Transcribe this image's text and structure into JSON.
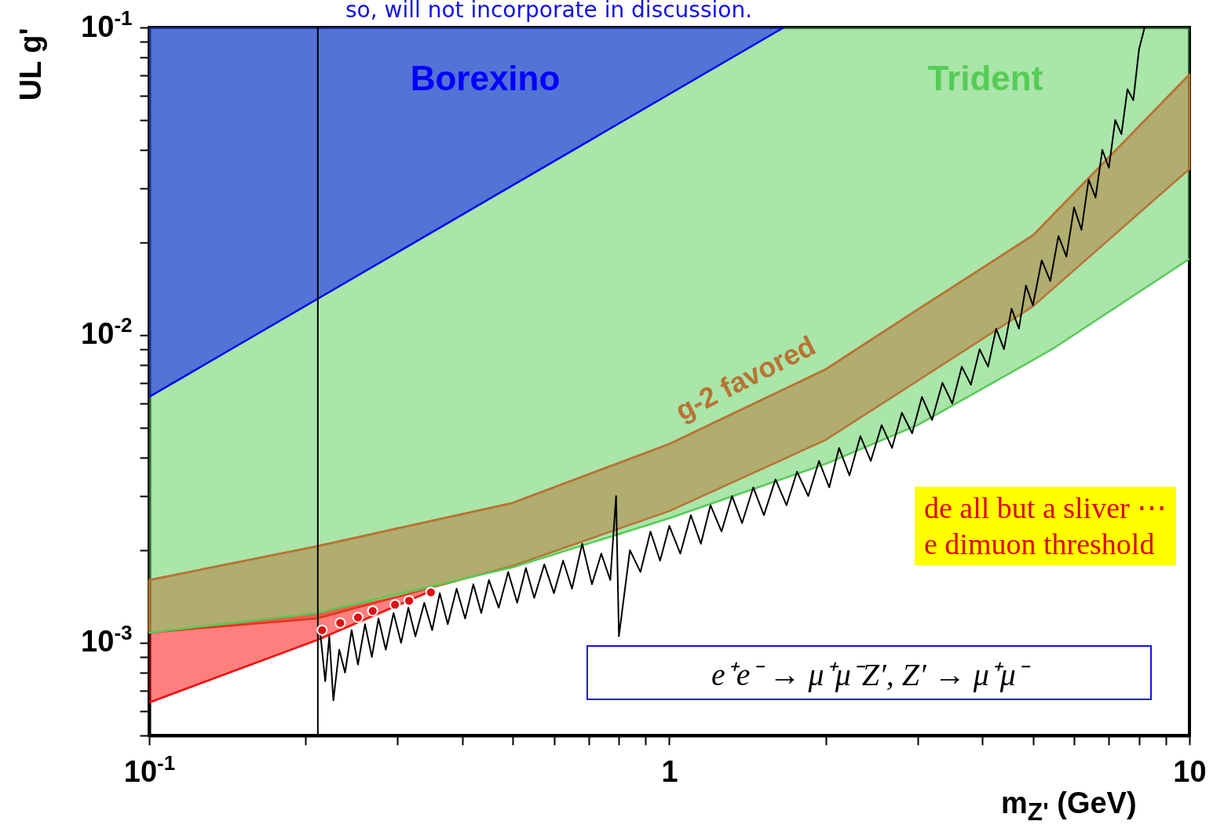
{
  "chart_data": {
    "type": "line",
    "xlabel": "m$_{Z'}$ (GeV)",
    "ylabel": "UL  g'",
    "log": "xy",
    "xlim": [
      0.1,
      10
    ],
    "ylim": [
      0.0005,
      0.1
    ],
    "xticks": [
      {
        "value": 0.1,
        "label": "10$^{-1}$"
      },
      {
        "value": 0.2,
        "label": null
      },
      {
        "value": 0.3,
        "label": null
      },
      {
        "value": 0.4,
        "label": null
      },
      {
        "value": 0.5,
        "label": null
      },
      {
        "value": 0.6,
        "label": null
      },
      {
        "value": 0.7,
        "label": null
      },
      {
        "value": 0.8,
        "label": null
      },
      {
        "value": 0.9,
        "label": null
      },
      1,
      {
        "value": 2,
        "label": null
      },
      {
        "value": 3,
        "label": null
      },
      {
        "value": 4,
        "label": null
      },
      {
        "value": 5,
        "label": null
      },
      {
        "value": 6,
        "label": null
      },
      {
        "value": 7,
        "label": null
      },
      {
        "value": 8,
        "label": null
      },
      {
        "value": 9,
        "label": null
      },
      10
    ],
    "yticks": [
      {
        "value": 0.0005,
        "label": null
      },
      {
        "value": 0.0006,
        "label": null
      },
      {
        "value": 0.0007,
        "label": null
      },
      {
        "value": 0.0008,
        "label": null
      },
      {
        "value": 0.0009,
        "label": null
      },
      {
        "value": 0.001,
        "label": "10$^{-3}$"
      },
      {
        "value": 0.002,
        "label": null
      },
      {
        "value": 0.003,
        "label": null
      },
      {
        "value": 0.004,
        "label": null
      },
      {
        "value": 0.005,
        "label": null
      },
      {
        "value": 0.006,
        "label": null
      },
      {
        "value": 0.007,
        "label": null
      },
      {
        "value": 0.008,
        "label": null
      },
      {
        "value": 0.009,
        "label": null
      },
      {
        "value": 0.01,
        "label": "10$^{-2}$"
      },
      {
        "value": 0.02,
        "label": null
      },
      {
        "value": 0.03,
        "label": null
      },
      {
        "value": 0.04,
        "label": null
      },
      {
        "value": 0.05,
        "label": null
      },
      {
        "value": 0.06,
        "label": null
      },
      {
        "value": 0.07,
        "label": null
      },
      {
        "value": 0.08,
        "label": null
      },
      {
        "value": 0.09,
        "label": null
      },
      {
        "value": 0.1,
        "label": "10$^{-1}$"
      }
    ],
    "series": [
      {
        "name": "Trident",
        "type": "line",
        "color": "#55cc55",
        "x": [
          0.1,
          0.21,
          0.35,
          0.5,
          1,
          2,
          3,
          4,
          5.5,
          10
        ],
        "values": [
          0.00108,
          0.00125,
          0.00153,
          0.00176,
          0.00254,
          0.00382,
          0.0051,
          0.0067,
          0.0091,
          0.0177
        ],
        "lower": [
          0.00108,
          0.00125,
          0.00153,
          0.00176,
          0.00254,
          0.00382,
          0.0051,
          0.0067,
          0.0091,
          0.0177
        ],
        "upper": [
          0.1,
          0.1,
          0.1,
          0.1,
          0.1,
          0.1,
          0.1,
          0.1,
          0.1,
          0.1
        ]
      },
      {
        "name": "g-2 favored",
        "type": "line",
        "color": "#b87333",
        "x": [
          0.1,
          0.21,
          0.5,
          1,
          2,
          3,
          5,
          10
        ],
        "values": [
          0.0016,
          0.00206,
          0.00285,
          0.00443,
          0.00775,
          0.0121,
          0.0211,
          0.0703
        ],
        "lower": [
          0.00108,
          0.0012,
          0.00178,
          0.00268,
          0.00457,
          0.0071,
          0.0124,
          0.0347
        ],
        "upper": [
          0.0016,
          0.00206,
          0.00285,
          0.00443,
          0.00775,
          0.0121,
          0.0211,
          0.0703
        ]
      },
      {
        "type": "line",
        "color": "#ff0000",
        "x": [
          0.1,
          0.21,
          0.35
        ],
        "values": [
          0.00064,
          0.00102,
          0.00148
        ],
        "lower": [
          0.00064,
          0.00102,
          0.00148
        ],
        "upper": [
          0.00108,
          0.00125,
          0.0015
        ]
      },
      {
        "name": "Borexino",
        "type": "line",
        "color": "#0000ff",
        "x": [
          0.1,
          1.66
        ],
        "values": [
          0.0063,
          0.1
        ],
        "lower": [
          0.0063,
          0.1
        ],
        "upper": [
          0.1,
          0.1
        ]
      },
      {
        "type": "line",
        "color": "#000000",
        "x": [
          0.213,
          0.218,
          0.222,
          0.226,
          0.232,
          0.238,
          0.245,
          0.252,
          0.26,
          0.268,
          0.276,
          0.285,
          0.295,
          0.305,
          0.315,
          0.325,
          0.338,
          0.35,
          0.362,
          0.375,
          0.39,
          0.405,
          0.42,
          0.435,
          0.45,
          0.47,
          0.49,
          0.51,
          0.53,
          0.55,
          0.575,
          0.6,
          0.625,
          0.65,
          0.68,
          0.71,
          0.74,
          0.77,
          0.79,
          0.8,
          0.84,
          0.88,
          0.92,
          0.96,
          1.0,
          1.05,
          1.1,
          1.15,
          1.2,
          1.26,
          1.32,
          1.38,
          1.45,
          1.52,
          1.6,
          1.68,
          1.76,
          1.85,
          1.94,
          2.03,
          2.12,
          2.22,
          2.33,
          2.44,
          2.56,
          2.68,
          2.8,
          2.93,
          3.06,
          3.2,
          3.35,
          3.5,
          3.65,
          3.8,
          3.95,
          4.1,
          4.25,
          4.4,
          4.55,
          4.7,
          4.85,
          5.0,
          5.2,
          5.4,
          5.6,
          5.8,
          6.0,
          6.2,
          6.4,
          6.6,
          6.8,
          7.0,
          7.2,
          7.4,
          7.6,
          7.8,
          8.0,
          8.2
        ],
        "values": [
          0.0011,
          0.00075,
          0.00105,
          0.00065,
          0.00095,
          0.0008,
          0.0011,
          0.00085,
          0.00115,
          0.0009,
          0.0012,
          0.00095,
          0.00125,
          0.001,
          0.0013,
          0.00105,
          0.00135,
          0.0011,
          0.00145,
          0.00115,
          0.0015,
          0.0012,
          0.00155,
          0.00125,
          0.0016,
          0.0013,
          0.0017,
          0.00135,
          0.00175,
          0.0014,
          0.0018,
          0.00145,
          0.00185,
          0.0015,
          0.0021,
          0.00155,
          0.00195,
          0.0016,
          0.003,
          0.00105,
          0.002,
          0.0017,
          0.0023,
          0.00185,
          0.0024,
          0.00195,
          0.0026,
          0.0021,
          0.0028,
          0.0023,
          0.003,
          0.00245,
          0.0032,
          0.0026,
          0.0034,
          0.0028,
          0.0036,
          0.003,
          0.0039,
          0.0032,
          0.0043,
          0.0035,
          0.0047,
          0.0039,
          0.0051,
          0.0043,
          0.0056,
          0.0048,
          0.0063,
          0.0053,
          0.007,
          0.006,
          0.0079,
          0.0069,
          0.009,
          0.0079,
          0.0105,
          0.009,
          0.0122,
          0.0105,
          0.0145,
          0.0125,
          0.0175,
          0.015,
          0.021,
          0.018,
          0.026,
          0.022,
          0.032,
          0.028,
          0.04,
          0.035,
          0.05,
          0.045,
          0.063,
          0.058,
          0.085,
          0.1
        ]
      },
      {
        "type": "scatter",
        "color": "#dd1111",
        "marker": "circle",
        "x": [
          0.215,
          0.233,
          0.252,
          0.269,
          0.297,
          0.316,
          0.348
        ],
        "values": [
          0.0011,
          0.00116,
          0.00121,
          0.00127,
          0.00133,
          0.00137,
          0.00146
        ]
      }
    ],
    "ref_lines": [
      {
        "axis": "x",
        "value": 0.211,
        "color": "#000000"
      }
    ],
    "annotations": [
      "so, will not incorporate in discussion.",
      "de all but a sliver ⋯",
      "e dimuon threshold",
      "e⁺e⁻ → μ⁺μ⁻Z′, Z′ → μ⁺μ⁻"
    ]
  }
}
